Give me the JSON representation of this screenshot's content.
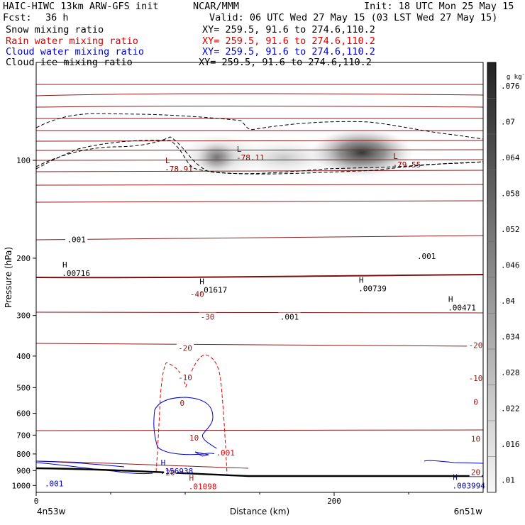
{
  "header": {
    "title": "HAIC-HIWC 13km ARW-GFS init",
    "org": "NCAR/MMM",
    "init": "Init: 18 UTC Mon 25 May 15",
    "fcst_label": "Fcst:",
    "fcst_value": "36 h",
    "valid": "Valid: 06 UTC Wed 27 May 15 (03 LST Wed 27 May 15)"
  },
  "fields": [
    {
      "name": "Snow mixing ratio",
      "xy": "XY= 259.5, 91.6 to 274.6,110.2",
      "color": "#000000"
    },
    {
      "name": "Rain water mixing ratio",
      "xy": "XY= 259.5, 91.6 to 274.6,110.2",
      "color": "#e00000"
    },
    {
      "name": "Cloud water mixing ratio",
      "xy": "XY= 259.5, 91.6 to 274.6,110.2",
      "color": "#0000d0"
    },
    {
      "name": "Cloud ice mixing ratio",
      "xy": "XY= 259.5, 91.6 to 274.6,110.2",
      "color": "#000000"
    }
  ],
  "colorbar": {
    "unit": "g kg",
    "unit_exp": "-1",
    "labels": [
      ".076",
      ".07",
      ".064",
      ".058",
      ".052",
      ".046",
      ".04",
      ".034",
      ".028",
      ".022",
      ".016",
      ".01"
    ]
  },
  "chart_data": {
    "type": "contour",
    "xlabel": "Distance (km)",
    "ylabel": "Pressure (hPa)",
    "xlim": [
      0,
      300
    ],
    "ylim": [
      1050,
      50
    ],
    "yscale": "log",
    "x_ticks": [
      "0",
      "200"
    ],
    "x_tick_values": [
      0,
      200
    ],
    "y_ticks": [
      "100",
      "200",
      "300",
      "400",
      "500",
      "600",
      "700",
      "800",
      "900",
      "1000"
    ],
    "y_tick_values": [
      100,
      200,
      300,
      400,
      500,
      600,
      700,
      800,
      900,
      1000
    ],
    "endpoints": {
      "left": "4n53w",
      "right": "6n51w"
    },
    "temperature_isotherm_labels": [
      {
        "text": "-40",
        "x": 108,
        "p": 258
      },
      {
        "text": "-30",
        "x": 115,
        "p": 303
      },
      {
        "text": "-20",
        "x": 100,
        "p": 378
      },
      {
        "text": "-20",
        "x": 295,
        "p": 370
      },
      {
        "text": "-10",
        "x": 100,
        "p": 465
      },
      {
        "text": "-10",
        "x": 295,
        "p": 468
      },
      {
        "text": "0",
        "x": 98,
        "p": 558
      },
      {
        "text": "0",
        "x": 295,
        "p": 553
      },
      {
        "text": "10",
        "x": 106,
        "p": 713
      },
      {
        "text": "10",
        "x": 295,
        "p": 718
      },
      {
        "text": "20",
        "x": 90,
        "p": 913
      },
      {
        "text": "20",
        "x": 295,
        "p": 910
      }
    ],
    "extrema": [
      {
        "type": "L",
        "value": "-78.91",
        "x": 92,
        "p": 104,
        "color": "#8b0000"
      },
      {
        "type": "L",
        "value": "-78.11",
        "x": 140,
        "p": 96,
        "color": "#8b0000"
      },
      {
        "type": "L",
        "value": "-79.55",
        "x": 245,
        "p": 101,
        "color": "#8b0000"
      },
      {
        "type": "H",
        "value": ".00716",
        "x": 23,
        "p": 218,
        "color": "#000000"
      },
      {
        "type": "H",
        "value": ".01617",
        "x": 115,
        "p": 245,
        "color": "#000000"
      },
      {
        "type": "H",
        "value": ".00739",
        "x": 222,
        "p": 243,
        "color": "#000000"
      },
      {
        "type": "H",
        "value": ".00471",
        "x": 282,
        "p": 278,
        "color": "#000000"
      },
      {
        "type": "H",
        "value": ".156938",
        "x": 89,
        "p": 885,
        "color": "#0000c0"
      },
      {
        "type": "H",
        "value": ".01098",
        "x": 108,
        "p": 985,
        "color": "#e00000"
      },
      {
        "type": "H",
        "value": ".003994",
        "x": 285,
        "p": 980,
        "color": "#0000c0"
      }
    ],
    "contour_labels": [
      {
        "text": ".001",
        "x": 27,
        "p": 175,
        "color": "#000000"
      },
      {
        "text": ".001",
        "x": 262,
        "p": 197,
        "color": "#000000"
      },
      {
        "text": ".001",
        "x": 170,
        "p": 303,
        "color": "#000000"
      },
      {
        "text": ".001",
        "x": 127,
        "p": 793,
        "color": "#e00000"
      },
      {
        "text": ".001",
        "x": 12,
        "p": 985,
        "color": "#0000c0"
      }
    ]
  }
}
